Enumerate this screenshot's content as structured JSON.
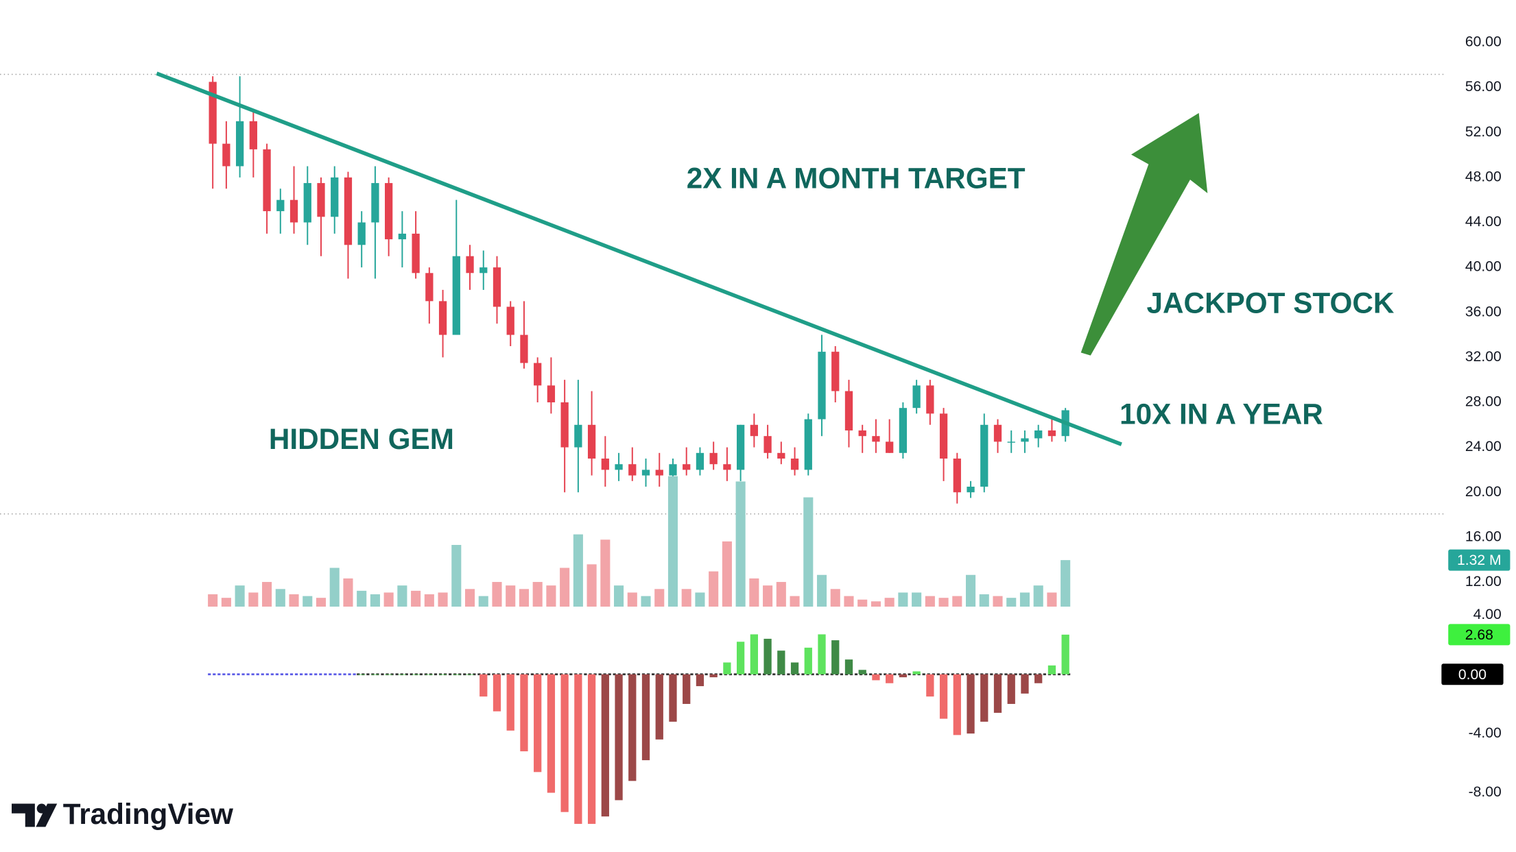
{
  "chart_data": [
    {
      "type": "candlestick",
      "open": [
        56.5,
        51,
        49,
        53,
        50.5,
        45,
        46,
        44,
        47.5,
        44.5,
        48,
        42,
        44,
        47.5,
        42.5,
        43,
        39.5,
        37,
        34,
        41,
        39.5,
        40,
        36.5,
        34,
        31.5,
        29.5,
        28,
        24,
        26,
        23,
        22,
        22.5,
        21.5,
        22,
        21.5,
        22.5,
        22,
        23.5,
        22.5,
        22,
        26,
        25,
        23.5,
        23,
        22,
        26.5,
        32.5,
        29,
        25.5,
        25,
        24.5,
        23.5,
        27.5,
        29.5,
        27,
        23,
        20,
        20.5,
        26,
        24.5,
        24.5,
        24.8,
        25.5,
        25
      ],
      "high": [
        57,
        53,
        57,
        54,
        51,
        47,
        49,
        49,
        48,
        49,
        48.5,
        45,
        49,
        48,
        45,
        45,
        40,
        38,
        46,
        42,
        41.5,
        41,
        37,
        37,
        32,
        32,
        30,
        30,
        29,
        25,
        23.5,
        24,
        23,
        23.5,
        23,
        24,
        24,
        24.5,
        24,
        26,
        27,
        26,
        24.5,
        24,
        27,
        34,
        33,
        30,
        26,
        26.5,
        26.5,
        28,
        30,
        30,
        27.5,
        23.5,
        21,
        27,
        26.5,
        25.5,
        25.5,
        26,
        26.5,
        27.5
      ],
      "low": [
        47,
        47,
        48,
        48,
        43,
        43,
        43,
        42,
        41,
        43,
        39,
        40,
        39,
        41,
        40,
        39,
        35,
        32,
        34,
        38,
        38,
        35,
        33,
        31,
        28,
        27,
        20,
        20,
        21.5,
        20.5,
        21,
        21,
        20.5,
        20.5,
        20,
        21.5,
        21.5,
        22,
        21,
        21,
        24,
        23,
        22.5,
        21.5,
        21.5,
        25,
        28,
        24,
        23.5,
        23.5,
        23.5,
        23,
        27,
        26,
        21,
        19,
        19.5,
        20,
        23.5,
        23.5,
        23.5,
        24,
        24.5,
        24.5
      ],
      "close": [
        51,
        49,
        53,
        50.5,
        45,
        46,
        44,
        47.5,
        44.5,
        48,
        42,
        44,
        47.5,
        42.5,
        43,
        39.5,
        37,
        34,
        41,
        39.5,
        40,
        36.5,
        34,
        31.5,
        29.5,
        28,
        24,
        26,
        23,
        22,
        22.5,
        21.5,
        22,
        21.5,
        22.5,
        22,
        23.5,
        22.5,
        22,
        26,
        25,
        23.5,
        23,
        22,
        26.5,
        32.5,
        29,
        25.5,
        25,
        24.5,
        23.5,
        27.5,
        29.5,
        27,
        23,
        20,
        20.5,
        26,
        24.5,
        24.5,
        24.8,
        25.5,
        25,
        27.3
      ],
      "colors": {
        "up": "#26a69a",
        "down": "#e5414f"
      },
      "ylim": [
        9.66,
        63.78
      ],
      "yticks": [
        {
          "value": 60,
          "label": "60.00"
        },
        {
          "value": 56,
          "label": "56.00"
        },
        {
          "value": 52,
          "label": "52.00"
        },
        {
          "value": 48,
          "label": "48.00"
        },
        {
          "value": 44,
          "label": "44.00"
        },
        {
          "value": 40,
          "label": "40.00"
        },
        {
          "value": 36,
          "label": "36.00"
        },
        {
          "value": 32,
          "label": "32.00"
        },
        {
          "value": 28,
          "label": "28.00"
        },
        {
          "value": 24,
          "label": "24.00"
        },
        {
          "value": 20,
          "label": "20.00"
        },
        {
          "value": 16,
          "label": "16.00"
        },
        {
          "value": 12,
          "label": "12.00"
        }
      ],
      "annotations": [
        "2X IN A MONTH TARGET",
        "JACKPOT STOCK",
        "10X IN A YEAR",
        "HIDDEN GEM"
      ]
    },
    {
      "type": "bar",
      "values": [
        0.35,
        0.25,
        0.6,
        0.4,
        0.7,
        0.5,
        0.35,
        0.3,
        0.25,
        1.1,
        0.8,
        0.45,
        0.35,
        0.4,
        0.6,
        0.45,
        0.35,
        0.4,
        1.75,
        0.5,
        0.3,
        0.7,
        0.6,
        0.5,
        0.7,
        0.6,
        1.1,
        2.05,
        1.2,
        1.9,
        0.6,
        0.4,
        0.3,
        0.5,
        3.7,
        0.5,
        0.4,
        1.0,
        1.85,
        3.55,
        0.8,
        0.6,
        0.7,
        0.3,
        3.1,
        0.9,
        0.5,
        0.3,
        0.2,
        0.15,
        0.25,
        0.4,
        0.4,
        0.3,
        0.25,
        0.3,
        0.9,
        0.35,
        0.3,
        0.25,
        0.4,
        0.6,
        0.4,
        1.32
      ],
      "value_labels": [
        null,
        null,
        null,
        null,
        null,
        null,
        null,
        null,
        null,
        null,
        null,
        null,
        null,
        null,
        null,
        null,
        null,
        null,
        null,
        null,
        null,
        null,
        null,
        null,
        null,
        null,
        null,
        null,
        null,
        null,
        null,
        null,
        null,
        null,
        null,
        null,
        null,
        null,
        null,
        null,
        null,
        null,
        null,
        null,
        null,
        null,
        null,
        null,
        null,
        null,
        null,
        null,
        null,
        null,
        null,
        null,
        null,
        null,
        null,
        null,
        null,
        null,
        null,
        "1.32 M"
      ],
      "colors": {
        "up": "#93cfc9",
        "down": "#f2a4a8",
        "label": "#26a69a"
      },
      "ylim": [
        0,
        4
      ]
    },
    {
      "type": "bar",
      "values": [
        null,
        null,
        null,
        null,
        null,
        null,
        null,
        null,
        null,
        null,
        null,
        0,
        0,
        0,
        0,
        0,
        0,
        0,
        0,
        0,
        -1.5,
        -2.5,
        -3.8,
        -5.2,
        -6.6,
        -8,
        -9.3,
        -10.1,
        -10.1,
        -9.6,
        -8.5,
        -7.2,
        -5.8,
        -4.4,
        -3.2,
        -2,
        -0.8,
        -0.2,
        0.8,
        2.2,
        2.7,
        2.4,
        1.6,
        0.8,
        1.8,
        2.7,
        2.3,
        1,
        0.3,
        -0.4,
        -0.6,
        -0.2,
        0.2,
        -1.5,
        -3,
        -4.1,
        -4,
        -3.2,
        -2.6,
        -2,
        -1.3,
        -0.6,
        0.6,
        2.68
      ],
      "value_labels": [
        null,
        null,
        null,
        null,
        null,
        null,
        null,
        null,
        null,
        null,
        null,
        null,
        null,
        null,
        null,
        null,
        null,
        null,
        null,
        null,
        null,
        null,
        null,
        null,
        null,
        null,
        null,
        null,
        null,
        null,
        null,
        null,
        null,
        null,
        null,
        null,
        null,
        null,
        null,
        null,
        null,
        null,
        null,
        null,
        null,
        null,
        null,
        null,
        null,
        null,
        null,
        null,
        null,
        null,
        null,
        null,
        null,
        null,
        null,
        null,
        null,
        null,
        null,
        "2.68"
      ],
      "colors": {
        "up_rising": "#5ee35e",
        "up_falling": "#3f8a46",
        "down_falling": "#f06b6b",
        "down_rising": "#9c4848",
        "label": "#3ef03e"
      },
      "ylim": [
        -12,
        4.44
      ],
      "yticks": [
        {
          "value": 4,
          "label": "4.00"
        },
        {
          "value": 0,
          "label": "0.00"
        },
        {
          "value": -4,
          "label": "-4.00"
        },
        {
          "value": -8,
          "label": "-8.00"
        }
      ]
    }
  ],
  "logo": "TradingView"
}
